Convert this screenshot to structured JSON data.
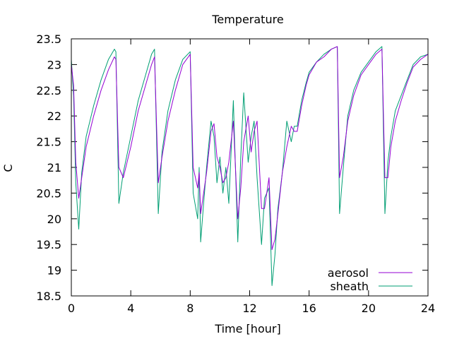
{
  "chart_data": {
    "type": "line",
    "title": "Temperature",
    "xlabel": "Time [hour]",
    "ylabel": "C",
    "xlim": [
      0,
      24
    ],
    "ylim": [
      18.5,
      23.5
    ],
    "xticks": [
      0,
      4,
      8,
      12,
      16,
      20,
      24
    ],
    "yticks": [
      18.5,
      19,
      19.5,
      20,
      20.5,
      21,
      21.5,
      22,
      22.5,
      23,
      23.5
    ],
    "ytick_labels": [
      "18.5",
      "19",
      "19.5",
      "20",
      "20.5",
      "21",
      "21.5",
      "22",
      "22.5",
      "23",
      "23.5"
    ],
    "grid": false,
    "legend_position": "bottom-right",
    "series": [
      {
        "name": "aerosol",
        "color": "#9400d3",
        "x": [
          0,
          0.15,
          0.3,
          0.5,
          0.7,
          1.0,
          1.5,
          2.0,
          2.5,
          2.9,
          3.0,
          3.2,
          3.5,
          4.0,
          4.5,
          5.0,
          5.4,
          5.6,
          5.85,
          6.1,
          6.5,
          7.0,
          7.5,
          8.0,
          8.2,
          8.5,
          8.6,
          8.7,
          8.9,
          9.1,
          9.4,
          9.6,
          9.8,
          10.0,
          10.2,
          10.4,
          10.6,
          10.9,
          11.2,
          11.4,
          11.6,
          11.9,
          12.1,
          12.3,
          12.5,
          12.8,
          13.0,
          13.3,
          13.5,
          13.7,
          13.9,
          14.2,
          14.5,
          14.8,
          15.0,
          15.2,
          15.5,
          15.8,
          16.0,
          16.5,
          17.0,
          17.5,
          17.9,
          18.05,
          18.3,
          18.6,
          19.0,
          19.5,
          20.0,
          20.5,
          20.9,
          21.1,
          21.3,
          21.5,
          21.8,
          22.2,
          22.6,
          23.0,
          23.5,
          24.0
        ],
        "values": [
          23.0,
          22.6,
          21.1,
          20.4,
          20.8,
          21.4,
          22.0,
          22.5,
          22.9,
          23.15,
          23.1,
          21.0,
          20.8,
          21.4,
          22.1,
          22.6,
          23.0,
          23.15,
          20.7,
          21.2,
          21.9,
          22.5,
          23.0,
          23.2,
          21.0,
          20.6,
          20.9,
          20.1,
          20.5,
          20.9,
          21.7,
          21.85,
          21.2,
          21.0,
          20.7,
          20.8,
          21.1,
          21.9,
          20.0,
          20.6,
          21.5,
          22.0,
          21.3,
          21.7,
          21.9,
          20.2,
          20.2,
          20.8,
          19.4,
          19.6,
          20.1,
          20.9,
          21.4,
          21.8,
          21.7,
          21.7,
          22.2,
          22.6,
          22.8,
          23.05,
          23.15,
          23.3,
          23.35,
          20.8,
          21.2,
          21.9,
          22.4,
          22.8,
          23.0,
          23.2,
          23.3,
          20.8,
          20.8,
          21.4,
          21.9,
          22.3,
          22.65,
          22.95,
          23.1,
          23.2
        ]
      },
      {
        "name": "sheath",
        "color": "#009e73",
        "x": [
          0,
          0.15,
          0.3,
          0.5,
          0.7,
          1.0,
          1.5,
          2.0,
          2.5,
          2.9,
          3.0,
          3.2,
          3.5,
          4.0,
          4.5,
          5.0,
          5.4,
          5.6,
          5.85,
          6.1,
          6.5,
          7.0,
          7.5,
          8.0,
          8.2,
          8.5,
          8.6,
          8.7,
          8.9,
          9.1,
          9.4,
          9.6,
          9.8,
          10.0,
          10.2,
          10.4,
          10.6,
          10.9,
          11.2,
          11.4,
          11.6,
          11.9,
          12.1,
          12.3,
          12.5,
          12.8,
          13.0,
          13.3,
          13.5,
          13.7,
          13.9,
          14.2,
          14.5,
          14.8,
          15.0,
          15.2,
          15.5,
          15.8,
          16.0,
          16.5,
          17.0,
          17.5,
          17.9,
          18.05,
          18.3,
          18.6,
          19.0,
          19.5,
          20.0,
          20.5,
          20.9,
          21.1,
          21.3,
          21.5,
          21.8,
          22.2,
          22.6,
          23.0,
          23.5,
          24.0
        ],
        "values": [
          23.1,
          22.4,
          20.7,
          19.8,
          20.9,
          21.6,
          22.2,
          22.7,
          23.1,
          23.3,
          23.25,
          20.3,
          20.9,
          21.6,
          22.3,
          22.8,
          23.2,
          23.3,
          20.1,
          21.3,
          22.1,
          22.7,
          23.1,
          23.25,
          20.5,
          20.0,
          21.0,
          19.55,
          20.3,
          21.0,
          21.9,
          21.6,
          20.7,
          21.2,
          20.5,
          21.0,
          20.3,
          22.3,
          19.55,
          21.2,
          22.45,
          21.1,
          21.6,
          21.9,
          20.8,
          19.5,
          20.4,
          20.6,
          18.7,
          19.3,
          20.2,
          20.9,
          21.9,
          21.5,
          21.8,
          21.8,
          22.3,
          22.65,
          22.85,
          23.05,
          23.2,
          23.3,
          23.35,
          20.1,
          21.0,
          22.0,
          22.5,
          22.85,
          23.05,
          23.25,
          23.35,
          20.1,
          21.1,
          21.6,
          22.1,
          22.4,
          22.7,
          23.0,
          23.15,
          23.2
        ]
      }
    ]
  }
}
